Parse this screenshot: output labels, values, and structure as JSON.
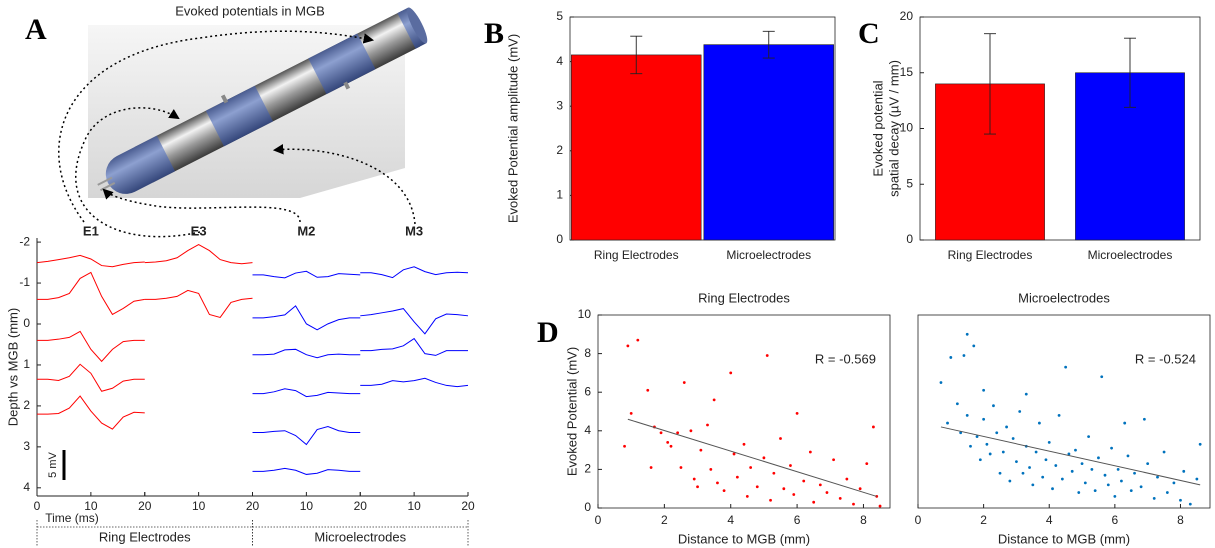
{
  "chart_data": [
    {
      "type": "waveforms",
      "panel": "A",
      "title": "Evoked potentials in MGB",
      "xlabel": "Time (ms)",
      "ylabel": "Depth vs MGB (mm)",
      "xlim": [
        0,
        20
      ],
      "xticks": [
        0,
        10,
        20
      ],
      "ylim": [
        -2.1,
        4.2
      ],
      "yticks": [
        -2,
        -1,
        0,
        1,
        2,
        3,
        4
      ],
      "x": [
        0,
        2,
        4,
        6,
        8,
        10,
        12,
        14,
        16,
        18,
        20
      ],
      "scale_bar": {
        "value": 5,
        "label": "5 mV"
      },
      "groups": [
        {
          "name": "Ring Electrodes",
          "columns": [
            {
              "label": "E1",
              "color": "#ff0000",
              "traces": [
                {
                  "depth": -1.5,
                  "values": [
                    0,
                    0.2,
                    0.5,
                    0.8,
                    1.2,
                    0.6,
                    -0.5,
                    -0.7,
                    -0.3,
                    0,
                    0.1
                  ]
                },
                {
                  "depth": -0.6,
                  "values": [
                    0,
                    0,
                    0.3,
                    1,
                    3.5,
                    4.5,
                    0.5,
                    -2.5,
                    -1.5,
                    -0.3,
                    0
                  ]
                },
                {
                  "depth": 0.4,
                  "values": [
                    0,
                    0,
                    0.2,
                    0.5,
                    1.5,
                    -1.5,
                    -3.5,
                    -1.5,
                    -0.2,
                    0,
                    0
                  ]
                },
                {
                  "depth": 1.35,
                  "values": [
                    0,
                    0,
                    -0.2,
                    0.5,
                    2.5,
                    1,
                    -2,
                    -1.5,
                    -0.3,
                    0,
                    0
                  ]
                },
                {
                  "depth": 2.2,
                  "values": [
                    0,
                    0,
                    0.1,
                    1,
                    3,
                    0.5,
                    -1.5,
                    -2.5,
                    -0.5,
                    0.3,
                    0.2
                  ]
                }
              ]
            },
            {
              "label": "E3",
              "color": "#ff0000",
              "traces": [
                {
                  "depth": -1.5,
                  "values": [
                    0,
                    0.1,
                    0.3,
                    0.8,
                    2,
                    3,
                    2,
                    0.5,
                    0,
                    -0.2,
                    0
                  ]
                },
                {
                  "depth": -0.6,
                  "values": [
                    0,
                    0,
                    0.2,
                    0.5,
                    1.5,
                    1,
                    -2.5,
                    -3,
                    -0.5,
                    0,
                    0.2
                  ]
                }
              ]
            }
          ]
        },
        {
          "name": "Microelectrodes",
          "columns": [
            {
              "label": "M2",
              "color": "#0000ff",
              "traces": [
                {
                  "depth": -1.2,
                  "values": [
                    0,
                    0,
                    -0.3,
                    -0.5,
                    0.3,
                    0.6,
                    -0.4,
                    -0.3,
                    0.2,
                    0.1,
                    0
                  ]
                },
                {
                  "depth": -0.15,
                  "values": [
                    0,
                    0,
                    0.2,
                    0.5,
                    2,
                    -1,
                    -2,
                    -1,
                    -0.3,
                    0,
                    0
                  ]
                },
                {
                  "depth": 0.75,
                  "values": [
                    0,
                    0,
                    0.1,
                    0.8,
                    0.9,
                    0,
                    -0.5,
                    0,
                    0.1,
                    0,
                    0
                  ]
                },
                {
                  "depth": 1.7,
                  "values": [
                    0,
                    0,
                    0.3,
                    0.8,
                    0.5,
                    -0.5,
                    -0.3,
                    0.2,
                    0.1,
                    0,
                    0
                  ]
                },
                {
                  "depth": 2.65,
                  "values": [
                    0,
                    0,
                    0.2,
                    0.3,
                    -0.5,
                    -2,
                    0.5,
                    1,
                    0.3,
                    0,
                    0
                  ]
                },
                {
                  "depth": 3.6,
                  "values": [
                    0,
                    0,
                    0.2,
                    0.5,
                    0.2,
                    -0.5,
                    -0.3,
                    0.3,
                    0.2,
                    0,
                    0
                  ]
                }
              ]
            },
            {
              "label": "M3",
              "color": "#0000ff",
              "traces": [
                {
                  "depth": -1.25,
                  "values": [
                    0,
                    0,
                    -0.3,
                    -0.8,
                    0.5,
                    1,
                    0.2,
                    -0.3,
                    0,
                    0.1,
                    0
                  ]
                },
                {
                  "depth": -0.2,
                  "values": [
                    0,
                    0.2,
                    0.5,
                    0.8,
                    1.2,
                    -1,
                    -3,
                    -0.5,
                    0.3,
                    0.2,
                    0
                  ]
                },
                {
                  "depth": 0.65,
                  "values": [
                    0,
                    0,
                    0.2,
                    0.3,
                    0.8,
                    2,
                    -0.5,
                    -0.8,
                    0,
                    0,
                    0
                  ]
                },
                {
                  "depth": 1.5,
                  "values": [
                    0,
                    0,
                    0.2,
                    0.8,
                    0.6,
                    0.8,
                    1.2,
                    0.5,
                    0,
                    -0.2,
                    0
                  ]
                }
              ]
            }
          ]
        }
      ]
    },
    {
      "type": "bar",
      "panel": "B",
      "ylabel": "Evoked Potential amplitude (mV)",
      "categories": [
        "Ring Electrodes",
        "Microelectrodes"
      ],
      "values": [
        4.15,
        4.38
      ],
      "errors": [
        0.42,
        0.3
      ],
      "colors": [
        "#ff0000",
        "#0000ff"
      ],
      "ylim": [
        0,
        5
      ],
      "yticks": [
        0,
        1,
        2,
        3,
        4,
        5
      ]
    },
    {
      "type": "bar",
      "panel": "C",
      "ylabel": [
        "Evoked potential",
        "spatial decay (µV / mm)"
      ],
      "categories": [
        "Ring Electrodes",
        "Microelectrodes"
      ],
      "values": [
        14,
        15
      ],
      "errors": [
        4.5,
        3.1
      ],
      "colors": [
        "#ff0000",
        "#0000ff"
      ],
      "ylim": [
        0,
        20
      ],
      "yticks": [
        0,
        5,
        10,
        15,
        20
      ]
    },
    {
      "type": "scatter",
      "panel": "D",
      "title": "Ring Electrodes",
      "xlabel": "Distance to MGB (mm)",
      "ylabel": "Evoked Potential (mV)",
      "annotation": "R = -0.569",
      "xlim": [
        0,
        8.8
      ],
      "xticks": [
        0,
        2,
        4,
        6,
        8
      ],
      "ylim": [
        0,
        10
      ],
      "yticks": [
        0,
        2,
        4,
        6,
        8,
        10
      ],
      "color": "#ff0000",
      "x": [
        0.9,
        1.2,
        0.8,
        1.5,
        1.6,
        1.7,
        1.9,
        2.1,
        2.2,
        2.4,
        2.5,
        2.8,
        2.9,
        3.1,
        3.3,
        3.4,
        3.5,
        3.6,
        3.8,
        4.0,
        4.1,
        4.2,
        4.4,
        4.5,
        4.6,
        4.8,
        5.0,
        5.1,
        5.2,
        5.3,
        5.5,
        5.6,
        5.8,
        5.9,
        6.0,
        6.2,
        6.4,
        6.5,
        6.7,
        6.9,
        7.1,
        7.3,
        7.5,
        7.7,
        7.9,
        8.1,
        8.3,
        8.4,
        8.5,
        2.6,
        1.0,
        3.0
      ],
      "values": [
        8.4,
        8.7,
        3.2,
        6.1,
        2.1,
        4.2,
        3.9,
        3.4,
        3.2,
        3.9,
        2.1,
        4.0,
        1.5,
        3.0,
        4.3,
        2.0,
        5.6,
        1.3,
        0.9,
        7.0,
        2.8,
        1.6,
        3.3,
        0.6,
        2.1,
        1.1,
        2.6,
        7.9,
        0.4,
        1.8,
        3.6,
        1.0,
        2.2,
        0.7,
        4.9,
        1.4,
        2.9,
        0.3,
        1.2,
        0.8,
        2.5,
        0.5,
        1.5,
        0.2,
        1.0,
        2.3,
        4.2,
        0.6,
        0.1,
        6.5,
        4.9,
        1.1
      ],
      "fit": {
        "x": [
          0.9,
          8.4
        ],
        "values": [
          4.6,
          0.6
        ]
      }
    },
    {
      "type": "scatter",
      "title": "Microelectrodes",
      "xlabel": "Distance to MGB (mm)",
      "annotation": "R = -0.524",
      "xlim": [
        0,
        8.9
      ],
      "xticks": [
        0,
        2,
        4,
        6,
        8
      ],
      "ylim": [
        0,
        10
      ],
      "color": "#0072bd",
      "x": [
        0.7,
        1.0,
        1.2,
        1.3,
        1.4,
        1.5,
        1.5,
        1.6,
        1.7,
        1.8,
        1.9,
        2.0,
        2.1,
        2.2,
        2.3,
        2.4,
        2.5,
        2.6,
        2.7,
        2.8,
        2.9,
        3.0,
        3.1,
        3.2,
        3.3,
        3.4,
        3.5,
        3.6,
        3.7,
        3.8,
        3.9,
        4.0,
        4.1,
        4.2,
        4.3,
        4.4,
        4.5,
        4.6,
        4.7,
        4.8,
        4.9,
        5.0,
        5.1,
        5.2,
        5.3,
        5.4,
        5.5,
        5.6,
        5.7,
        5.8,
        5.9,
        6.0,
        6.1,
        6.2,
        6.3,
        6.4,
        6.5,
        6.6,
        6.8,
        6.9,
        7.0,
        7.2,
        7.3,
        7.5,
        7.6,
        7.8,
        8.0,
        8.1,
        8.3,
        8.5,
        8.6,
        0.9,
        2.0,
        3.3
      ],
      "values": [
        6.5,
        7.8,
        5.4,
        3.9,
        7.9,
        9.0,
        4.8,
        3.2,
        8.4,
        3.7,
        2.5,
        4.6,
        3.3,
        2.8,
        5.3,
        3.9,
        1.8,
        2.9,
        4.2,
        1.4,
        3.6,
        2.4,
        5.0,
        1.8,
        3.2,
        2.1,
        1.2,
        2.9,
        4.4,
        1.6,
        2.5,
        3.4,
        1.0,
        2.2,
        4.8,
        1.5,
        7.3,
        2.8,
        1.9,
        3.0,
        0.8,
        2.3,
        1.3,
        3.7,
        2.0,
        0.9,
        2.6,
        6.8,
        1.7,
        1.2,
        3.1,
        0.6,
        2.0,
        1.4,
        4.4,
        2.7,
        0.9,
        1.8,
        1.1,
        4.6,
        2.3,
        0.5,
        1.6,
        2.9,
        0.8,
        1.3,
        0.4,
        1.9,
        0.2,
        1.5,
        3.3,
        4.4,
        6.1,
        5.9
      ],
      "fit": {
        "x": [
          0.7,
          8.6
        ],
        "values": [
          4.2,
          1.2
        ]
      }
    }
  ]
}
